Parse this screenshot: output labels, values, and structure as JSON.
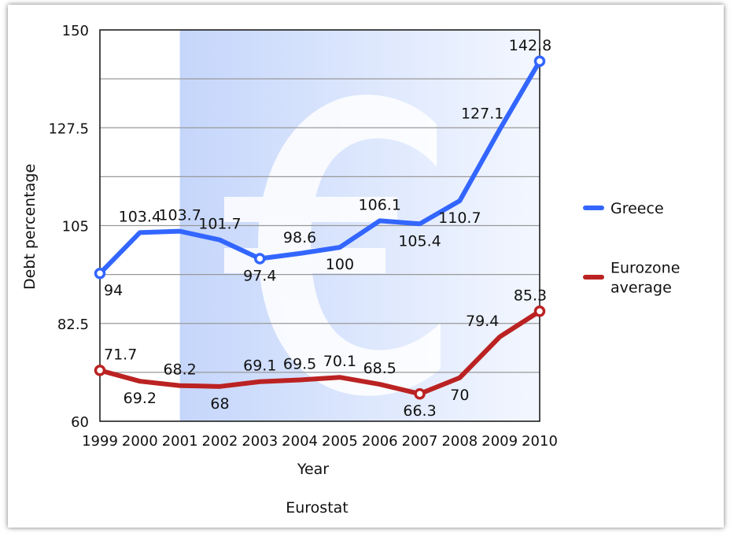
{
  "chart_data": {
    "type": "line",
    "title": "",
    "xlabel": "Year",
    "ylabel": "Debt percentage",
    "source": "Eurostat",
    "categories": [
      "1999",
      "2000",
      "2001",
      "2002",
      "2003",
      "2004",
      "2005",
      "2006",
      "2007",
      "2008",
      "2009",
      "2010"
    ],
    "ylim": [
      60,
      150
    ],
    "yticks": [
      "60",
      "82.5",
      "105",
      "127.5",
      "150"
    ],
    "grid": true,
    "legend_position": "right",
    "highlight_range": [
      "2001",
      "2010"
    ],
    "series": [
      {
        "name": "Greece",
        "color": "#3366ff",
        "values": [
          94,
          103.4,
          103.7,
          101.7,
          97.4,
          98.6,
          100,
          106.1,
          105.4,
          110.7,
          127.1,
          142.8
        ],
        "labels": [
          "94",
          "103.4",
          "103.7",
          "101.7",
          "97.4",
          "98.6",
          "100",
          "106.1",
          "105.4",
          "110.7",
          "127.1",
          "142.8"
        ],
        "label_positions": [
          "below",
          "above",
          "above",
          "above",
          "below",
          "above",
          "below",
          "above",
          "below",
          "below",
          "above",
          "above"
        ],
        "markers": [
          0,
          4,
          11
        ]
      },
      {
        "name": "Eurozone average",
        "legend_lines": [
          "Eurozone",
          "average"
        ],
        "color": "#bb2222",
        "values": [
          71.7,
          69.2,
          68.2,
          68,
          69.1,
          69.5,
          70.1,
          68.5,
          66.3,
          70,
          79.4,
          85.3
        ],
        "labels": [
          "71.7",
          "69.2",
          "68.2",
          "68",
          "69.1",
          "69.5",
          "70.1",
          "68.5",
          "66.3",
          "70",
          "79.4",
          "85.3"
        ],
        "label_positions": [
          "above",
          "below",
          "above",
          "below",
          "above",
          "above",
          "above",
          "above",
          "below",
          "below",
          "above",
          "above"
        ],
        "markers": [
          0,
          8,
          11
        ]
      }
    ]
  }
}
